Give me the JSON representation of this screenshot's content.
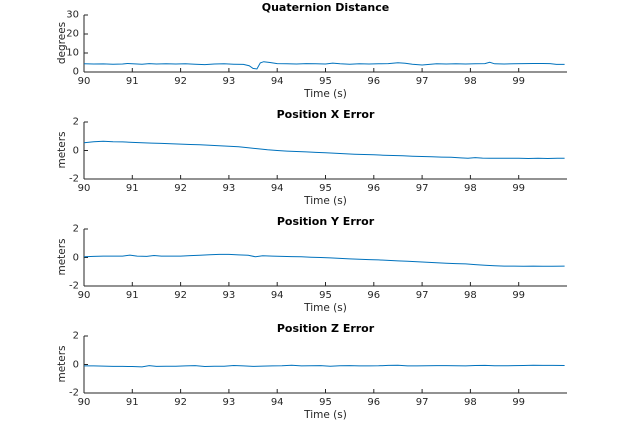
{
  "figure": {
    "background_color": "#ffffff",
    "axis_color": "#262626",
    "line_color": "#0072BD",
    "title_color": "#000000"
  },
  "chart_data": [
    {
      "type": "line",
      "title": "Quaternion Distance",
      "xlabel": "Time (s)",
      "ylabel": "degrees",
      "xlim": [
        90,
        100
      ],
      "ylim": [
        0,
        30
      ],
      "xticks": [
        90,
        91,
        92,
        93,
        94,
        95,
        96,
        97,
        98,
        99
      ],
      "yticks": [
        0,
        10,
        20,
        30
      ],
      "grid": false,
      "legend": null,
      "series": [
        {
          "name": "quaternion-distance",
          "color": "#0072BD",
          "points": [
            [
              90,
              4.3
            ],
            [
              90.2,
              4.2
            ],
            [
              90.4,
              4.25
            ],
            [
              90.6,
              4.1
            ],
            [
              90.8,
              4.2
            ],
            [
              90.9,
              4.5
            ],
            [
              91,
              4.3
            ],
            [
              91.2,
              4.1
            ],
            [
              91.35,
              4.4
            ],
            [
              91.5,
              4.2
            ],
            [
              91.7,
              4.35
            ],
            [
              91.9,
              4.2
            ],
            [
              92.1,
              4.3
            ],
            [
              92.3,
              4.1
            ],
            [
              92.5,
              3.9
            ],
            [
              92.7,
              4.2
            ],
            [
              92.9,
              4.3
            ],
            [
              93.1,
              4.1
            ],
            [
              93.3,
              4.0
            ],
            [
              93.42,
              3.3
            ],
            [
              93.5,
              1.9
            ],
            [
              93.58,
              1.6
            ],
            [
              93.65,
              4.8
            ],
            [
              93.72,
              5.4
            ],
            [
              93.85,
              5.0
            ],
            [
              94,
              4.4
            ],
            [
              94.2,
              4.3
            ],
            [
              94.4,
              4.2
            ],
            [
              94.6,
              4.4
            ],
            [
              94.8,
              4.3
            ],
            [
              95,
              4.2
            ],
            [
              95.15,
              4.7
            ],
            [
              95.3,
              4.3
            ],
            [
              95.5,
              4.1
            ],
            [
              95.7,
              4.3
            ],
            [
              95.9,
              4.2
            ],
            [
              96.1,
              4.3
            ],
            [
              96.3,
              4.4
            ],
            [
              96.5,
              4.9
            ],
            [
              96.65,
              4.6
            ],
            [
              96.8,
              4.1
            ],
            [
              97,
              3.7
            ],
            [
              97.15,
              4.0
            ],
            [
              97.3,
              4.3
            ],
            [
              97.5,
              4.2
            ],
            [
              97.7,
              4.3
            ],
            [
              97.9,
              4.2
            ],
            [
              98.1,
              4.3
            ],
            [
              98.3,
              4.4
            ],
            [
              98.4,
              5.1
            ],
            [
              98.5,
              4.3
            ],
            [
              98.7,
              4.2
            ],
            [
              98.9,
              4.3
            ],
            [
              99.1,
              4.4
            ],
            [
              99.3,
              4.5
            ],
            [
              99.5,
              4.5
            ],
            [
              99.65,
              4.4
            ],
            [
              99.78,
              4.0
            ],
            [
              99.95,
              4.0
            ]
          ]
        }
      ]
    },
    {
      "type": "line",
      "title": "Position X Error",
      "xlabel": "Time (s)",
      "ylabel": "meters",
      "xlim": [
        90,
        100
      ],
      "ylim": [
        -2,
        2
      ],
      "xticks": [
        90,
        91,
        92,
        93,
        94,
        95,
        96,
        97,
        98,
        99
      ],
      "yticks": [
        -2,
        0,
        2
      ],
      "grid": false,
      "legend": null,
      "series": [
        {
          "name": "position-x-error",
          "color": "#0072BD",
          "points": [
            [
              90,
              0.55
            ],
            [
              90.2,
              0.62
            ],
            [
              90.4,
              0.65
            ],
            [
              90.6,
              0.62
            ],
            [
              90.8,
              0.6
            ],
            [
              91,
              0.57
            ],
            [
              91.2,
              0.55
            ],
            [
              91.4,
              0.52
            ],
            [
              91.6,
              0.5
            ],
            [
              91.8,
              0.48
            ],
            [
              92,
              0.45
            ],
            [
              92.2,
              0.42
            ],
            [
              92.4,
              0.4
            ],
            [
              92.6,
              0.37
            ],
            [
              92.8,
              0.33
            ],
            [
              93,
              0.3
            ],
            [
              93.2,
              0.27
            ],
            [
              93.4,
              0.2
            ],
            [
              93.6,
              0.12
            ],
            [
              93.8,
              0.05
            ],
            [
              94,
              0.0
            ],
            [
              94.2,
              -0.04
            ],
            [
              94.4,
              -0.07
            ],
            [
              94.6,
              -0.1
            ],
            [
              94.8,
              -0.13
            ],
            [
              95,
              -0.16
            ],
            [
              95.2,
              -0.2
            ],
            [
              95.4,
              -0.23
            ],
            [
              95.6,
              -0.26
            ],
            [
              95.8,
              -0.28
            ],
            [
              96,
              -0.3
            ],
            [
              96.2,
              -0.33
            ],
            [
              96.4,
              -0.35
            ],
            [
              96.6,
              -0.37
            ],
            [
              96.8,
              -0.4
            ],
            [
              97,
              -0.42
            ],
            [
              97.2,
              -0.44
            ],
            [
              97.4,
              -0.46
            ],
            [
              97.6,
              -0.47
            ],
            [
              97.8,
              -0.52
            ],
            [
              97.95,
              -0.55
            ],
            [
              98.1,
              -0.5
            ],
            [
              98.25,
              -0.53
            ],
            [
              98.4,
              -0.55
            ],
            [
              98.6,
              -0.55
            ],
            [
              98.8,
              -0.55
            ],
            [
              99,
              -0.55
            ],
            [
              99.2,
              -0.56
            ],
            [
              99.4,
              -0.55
            ],
            [
              99.6,
              -0.56
            ],
            [
              99.8,
              -0.55
            ],
            [
              99.95,
              -0.55
            ]
          ]
        }
      ]
    },
    {
      "type": "line",
      "title": "Position Y Error",
      "xlabel": "Time (s)",
      "ylabel": "meters",
      "xlim": [
        90,
        100
      ],
      "ylim": [
        -2,
        2
      ],
      "xticks": [
        90,
        91,
        92,
        93,
        94,
        95,
        96,
        97,
        98,
        99
      ],
      "yticks": [
        -2,
        0,
        2
      ],
      "grid": false,
      "legend": null,
      "series": [
        {
          "name": "position-y-error",
          "color": "#0072BD",
          "points": [
            [
              90,
              0.05
            ],
            [
              90.2,
              0.08
            ],
            [
              90.4,
              0.1
            ],
            [
              90.6,
              0.1
            ],
            [
              90.8,
              0.1
            ],
            [
              90.95,
              0.17
            ],
            [
              91.1,
              0.1
            ],
            [
              91.3,
              0.08
            ],
            [
              91.45,
              0.14
            ],
            [
              91.6,
              0.1
            ],
            [
              91.8,
              0.1
            ],
            [
              92,
              0.1
            ],
            [
              92.2,
              0.13
            ],
            [
              92.4,
              0.16
            ],
            [
              92.6,
              0.2
            ],
            [
              92.8,
              0.22
            ],
            [
              93,
              0.22
            ],
            [
              93.2,
              0.18
            ],
            [
              93.4,
              0.16
            ],
            [
              93.55,
              0.05
            ],
            [
              93.7,
              0.12
            ],
            [
              93.9,
              0.1
            ],
            [
              94.1,
              0.08
            ],
            [
              94.3,
              0.06
            ],
            [
              94.5,
              0.05
            ],
            [
              94.7,
              0.02
            ],
            [
              94.9,
              0.0
            ],
            [
              95.1,
              -0.03
            ],
            [
              95.3,
              -0.06
            ],
            [
              95.5,
              -0.1
            ],
            [
              95.7,
              -0.12
            ],
            [
              95.9,
              -0.15
            ],
            [
              96.1,
              -0.17
            ],
            [
              96.3,
              -0.2
            ],
            [
              96.5,
              -0.24
            ],
            [
              96.7,
              -0.27
            ],
            [
              96.9,
              -0.3
            ],
            [
              97.1,
              -0.33
            ],
            [
              97.3,
              -0.37
            ],
            [
              97.5,
              -0.4
            ],
            [
              97.7,
              -0.43
            ],
            [
              97.9,
              -0.45
            ],
            [
              98.1,
              -0.5
            ],
            [
              98.3,
              -0.55
            ],
            [
              98.5,
              -0.58
            ],
            [
              98.7,
              -0.6
            ],
            [
              98.9,
              -0.6
            ],
            [
              99.1,
              -0.61
            ],
            [
              99.3,
              -0.6
            ],
            [
              99.5,
              -0.62
            ],
            [
              99.7,
              -0.61
            ],
            [
              99.95,
              -0.6
            ]
          ]
        }
      ]
    },
    {
      "type": "line",
      "title": "Position Z Error",
      "xlabel": "Time (s)",
      "ylabel": "meters",
      "xlim": [
        90,
        100
      ],
      "ylim": [
        -2,
        2
      ],
      "xticks": [
        90,
        91,
        92,
        93,
        94,
        95,
        96,
        97,
        98,
        99
      ],
      "yticks": [
        -2,
        0,
        2
      ],
      "grid": false,
      "legend": null,
      "series": [
        {
          "name": "position-z-error",
          "color": "#0072BD",
          "points": [
            [
              90,
              -0.1
            ],
            [
              90.2,
              -0.1
            ],
            [
              90.4,
              -0.11
            ],
            [
              90.6,
              -0.13
            ],
            [
              90.8,
              -0.13
            ],
            [
              91,
              -0.14
            ],
            [
              91.2,
              -0.17
            ],
            [
              91.35,
              -0.08
            ],
            [
              91.5,
              -0.13
            ],
            [
              91.7,
              -0.12
            ],
            [
              91.9,
              -0.12
            ],
            [
              92.1,
              -0.1
            ],
            [
              92.3,
              -0.08
            ],
            [
              92.5,
              -0.14
            ],
            [
              92.7,
              -0.12
            ],
            [
              92.9,
              -0.12
            ],
            [
              93.1,
              -0.07
            ],
            [
              93.3,
              -0.1
            ],
            [
              93.5,
              -0.13
            ],
            [
              93.7,
              -0.11
            ],
            [
              93.9,
              -0.1
            ],
            [
              94.1,
              -0.09
            ],
            [
              94.3,
              -0.05
            ],
            [
              94.5,
              -0.1
            ],
            [
              94.7,
              -0.09
            ],
            [
              94.9,
              -0.08
            ],
            [
              95.1,
              -0.12
            ],
            [
              95.3,
              -0.09
            ],
            [
              95.5,
              -0.08
            ],
            [
              95.7,
              -0.1
            ],
            [
              95.9,
              -0.1
            ],
            [
              96.1,
              -0.09
            ],
            [
              96.3,
              -0.06
            ],
            [
              96.5,
              -0.05
            ],
            [
              96.7,
              -0.1
            ],
            [
              96.9,
              -0.1
            ],
            [
              97.1,
              -0.09
            ],
            [
              97.3,
              -0.08
            ],
            [
              97.5,
              -0.08
            ],
            [
              97.7,
              -0.09
            ],
            [
              97.9,
              -0.1
            ],
            [
              98.1,
              -0.07
            ],
            [
              98.3,
              -0.06
            ],
            [
              98.5,
              -0.09
            ],
            [
              98.7,
              -0.09
            ],
            [
              98.9,
              -0.08
            ],
            [
              99.1,
              -0.07
            ],
            [
              99.3,
              -0.05
            ],
            [
              99.5,
              -0.06
            ],
            [
              99.7,
              -0.06
            ],
            [
              99.95,
              -0.07
            ]
          ]
        }
      ]
    }
  ]
}
